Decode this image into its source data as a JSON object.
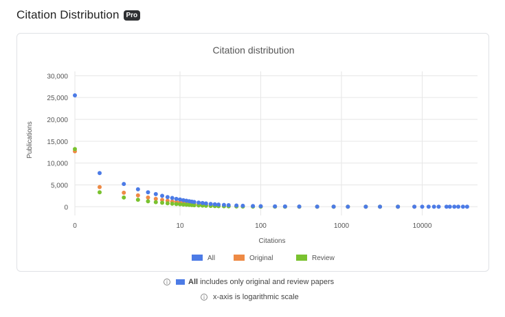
{
  "header": {
    "title": "Citation Distribution",
    "badge": "Pro"
  },
  "notes": {
    "all_label": "All",
    "all_text": "includes only original and review papers",
    "log_text": "x-axis is logarithmic scale"
  },
  "colors": {
    "all": "#4c7be6",
    "original": "#ee8a45",
    "review": "#7ac22f"
  },
  "chart_data": {
    "type": "scatter",
    "title": "Citation distribution",
    "xlabel": "Citations",
    "ylabel": "Publications",
    "x_scale": "log",
    "x_ticks": [
      "0",
      "10",
      "100",
      "1000",
      "10000"
    ],
    "y_ticks": [
      "30,000",
      "25,000",
      "20,000",
      "15,000",
      "10,000",
      "5,000",
      "0"
    ],
    "ylim": [
      -2000,
      31000
    ],
    "grid": true,
    "legend_position": "bottom",
    "series": [
      {
        "name": "All",
        "color": "#4c7be6",
        "points": [
          [
            0,
            25500
          ],
          [
            1,
            7700
          ],
          [
            2,
            5200
          ],
          [
            3,
            4000
          ],
          [
            4,
            3300
          ],
          [
            5,
            2900
          ],
          [
            6,
            2500
          ],
          [
            7,
            2200
          ],
          [
            8,
            2000
          ],
          [
            9,
            1800
          ],
          [
            10,
            1650
          ],
          [
            11,
            1500
          ],
          [
            12,
            1380
          ],
          [
            13,
            1270
          ],
          [
            14,
            1170
          ],
          [
            15,
            1080
          ],
          [
            17,
            950
          ],
          [
            19,
            840
          ],
          [
            21,
            750
          ],
          [
            24,
            640
          ],
          [
            27,
            560
          ],
          [
            30,
            490
          ],
          [
            35,
            410
          ],
          [
            40,
            350
          ],
          [
            50,
            270
          ],
          [
            60,
            220
          ],
          [
            80,
            160
          ],
          [
            100,
            120
          ],
          [
            150,
            80
          ],
          [
            200,
            60
          ],
          [
            300,
            40
          ],
          [
            500,
            25
          ],
          [
            800,
            15
          ],
          [
            1200,
            10
          ],
          [
            2000,
            6
          ],
          [
            3000,
            4
          ],
          [
            5000,
            2
          ],
          [
            8000,
            1
          ],
          [
            10000,
            1
          ],
          [
            12000,
            0
          ],
          [
            14000,
            0
          ],
          [
            16000,
            0
          ],
          [
            20000,
            0
          ],
          [
            22000,
            0
          ],
          [
            25000,
            0
          ],
          [
            28000,
            0
          ],
          [
            32000,
            0
          ],
          [
            36000,
            0
          ]
        ]
      },
      {
        "name": "Original",
        "color": "#ee8a45",
        "points": [
          [
            0,
            12700
          ],
          [
            1,
            4500
          ],
          [
            2,
            3200
          ],
          [
            3,
            2600
          ],
          [
            4,
            2100
          ],
          [
            5,
            1800
          ],
          [
            6,
            1550
          ],
          [
            7,
            1350
          ],
          [
            8,
            1200
          ],
          [
            9,
            1070
          ],
          [
            10,
            950
          ],
          [
            11,
            860
          ],
          [
            12,
            780
          ],
          [
            13,
            710
          ],
          [
            14,
            650
          ],
          [
            15,
            590
          ],
          [
            17,
            500
          ],
          [
            19,
            430
          ],
          [
            21,
            370
          ],
          [
            24,
            310
          ],
          [
            27,
            260
          ],
          [
            30,
            220
          ],
          [
            35,
            170
          ],
          [
            40,
            140
          ],
          [
            50,
            100
          ],
          [
            60,
            80
          ],
          [
            80,
            55
          ],
          [
            100,
            40
          ],
          [
            150,
            25
          ],
          [
            200,
            15
          ],
          [
            300,
            10
          ],
          [
            500,
            5
          ],
          [
            800,
            3
          ],
          [
            1200,
            2
          ],
          [
            2000,
            1
          ],
          [
            3000,
            1
          ],
          [
            5000,
            0
          ],
          [
            8000,
            0
          ]
        ]
      },
      {
        "name": "Review",
        "color": "#7ac22f",
        "points": [
          [
            0,
            13200
          ],
          [
            1,
            3300
          ],
          [
            2,
            2100
          ],
          [
            3,
            1600
          ],
          [
            4,
            1250
          ],
          [
            5,
            1050
          ],
          [
            6,
            900
          ],
          [
            7,
            780
          ],
          [
            8,
            690
          ],
          [
            9,
            610
          ],
          [
            10,
            550
          ],
          [
            11,
            500
          ],
          [
            12,
            450
          ],
          [
            13,
            410
          ],
          [
            14,
            370
          ],
          [
            15,
            340
          ],
          [
            17,
            290
          ],
          [
            19,
            250
          ],
          [
            21,
            215
          ],
          [
            24,
            180
          ],
          [
            27,
            150
          ],
          [
            30,
            130
          ],
          [
            35,
            100
          ],
          [
            40,
            80
          ],
          [
            50,
            60
          ],
          [
            60,
            45
          ],
          [
            80,
            30
          ],
          [
            100,
            22
          ],
          [
            150,
            14
          ],
          [
            200,
            9
          ],
          [
            300,
            6
          ],
          [
            500,
            3
          ],
          [
            800,
            2
          ],
          [
            1200,
            1
          ],
          [
            2000,
            1
          ],
          [
            3000,
            0
          ],
          [
            5000,
            0
          ]
        ]
      }
    ]
  }
}
